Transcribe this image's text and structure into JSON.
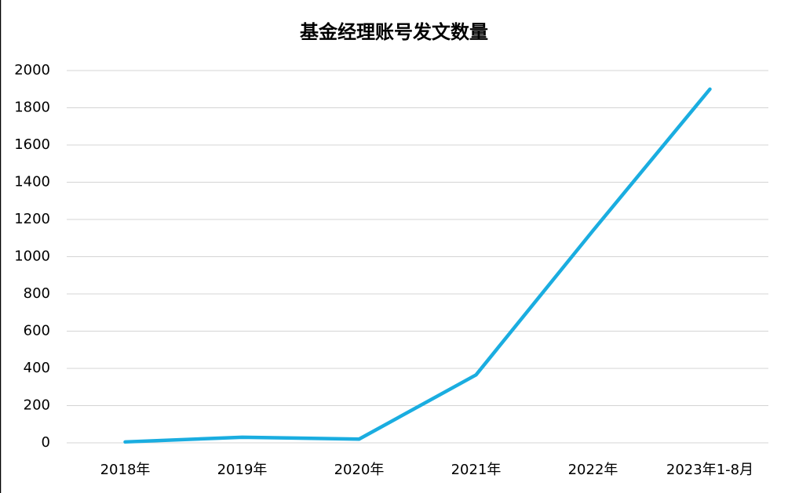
{
  "chart_data": {
    "type": "line",
    "title": "基金经理账号发文数量",
    "categories": [
      "2018年",
      "2019年",
      "2020年",
      "2021年",
      "2022年",
      "2023年1-8月"
    ],
    "values": [
      5,
      30,
      20,
      365,
      1140,
      1900
    ],
    "color": "#1aade0",
    "ylim": [
      0,
      2000
    ],
    "yticks": [
      0,
      200,
      400,
      600,
      800,
      1000,
      1200,
      1400,
      1600,
      1800,
      2000
    ],
    "grid": true
  }
}
